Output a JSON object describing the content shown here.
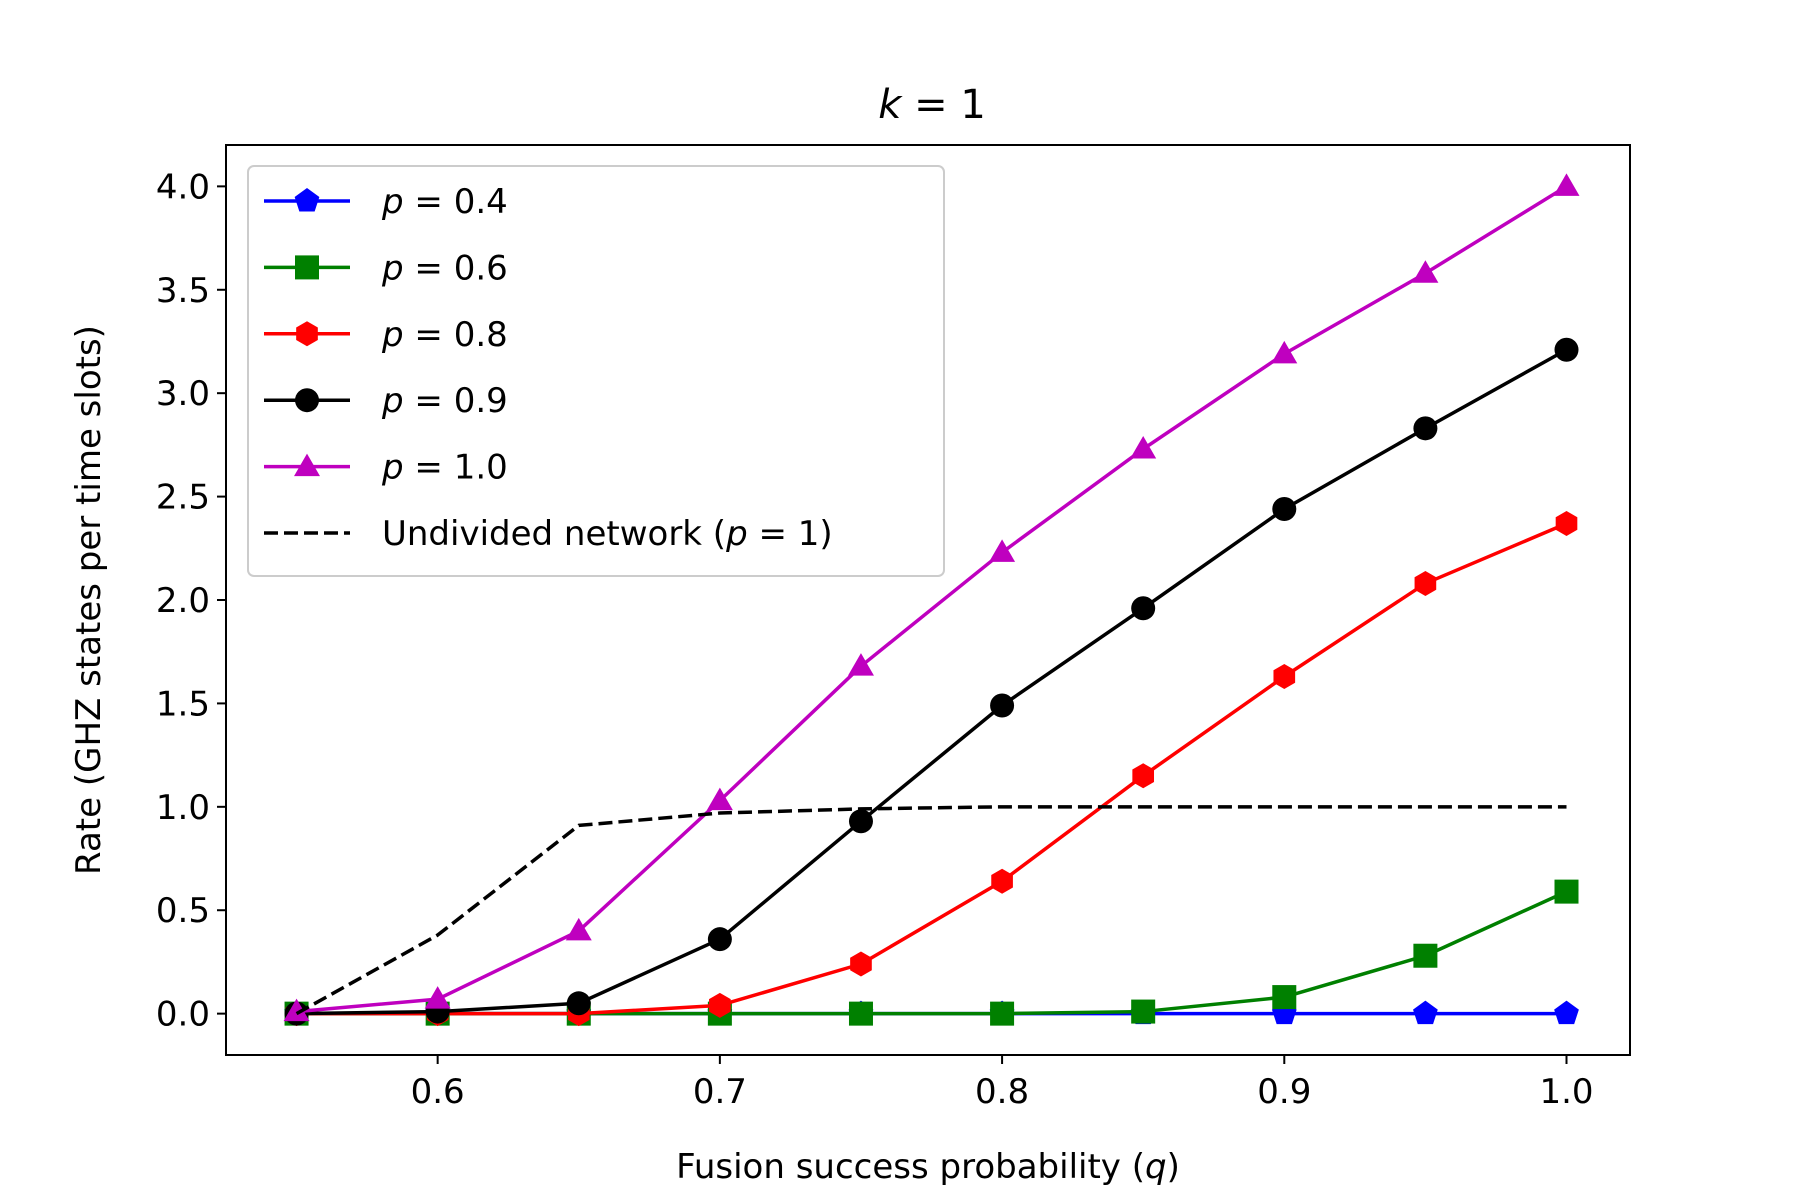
{
  "chart_data": {
    "type": "line",
    "title": "k = 1",
    "title_var": "k",
    "title_rest": " = 1",
    "xlabel": "Fusion success probability (q)",
    "xlabel_pre": "Fusion success probability (",
    "xlabel_var": "q",
    "xlabel_post": ")",
    "ylabel": "Rate (GHZ states per time slots)",
    "xlim": [
      0.525,
      1.0225
    ],
    "ylim": [
      -0.2,
      4.2
    ],
    "xticks": [
      0.6,
      0.7,
      0.8,
      0.9,
      1.0
    ],
    "xtick_labels": [
      "0.6",
      "0.7",
      "0.8",
      "0.9",
      "1.0"
    ],
    "yticks": [
      0.0,
      0.5,
      1.0,
      1.5,
      2.0,
      2.5,
      3.0,
      3.5,
      4.0
    ],
    "ytick_labels": [
      "0.0",
      "0.5",
      "1.0",
      "1.5",
      "2.0",
      "2.5",
      "3.0",
      "3.5",
      "4.0"
    ],
    "grid": false,
    "legend_position": "upper-left",
    "x": [
      0.55,
      0.6,
      0.65,
      0.7,
      0.75,
      0.8,
      0.85,
      0.9,
      0.95,
      1.0
    ],
    "series": [
      {
        "name": "p = 0.4",
        "name_var": "p",
        "name_rest": " = 0.4",
        "color": "#0000ff",
        "marker": "pentagon",
        "line": "solid",
        "values": [
          0,
          0,
          0,
          0,
          0,
          0,
          0,
          0,
          0,
          0
        ]
      },
      {
        "name": "p = 0.6",
        "name_var": "p",
        "name_rest": " = 0.6",
        "color": "#008000",
        "marker": "square",
        "line": "solid",
        "values": [
          0,
          0,
          0,
          0,
          0,
          0,
          0.01,
          0.08,
          0.28,
          0.59
        ]
      },
      {
        "name": "p = 0.8",
        "name_var": "p",
        "name_rest": " = 0.8",
        "color": "#ff0000",
        "marker": "hexagon",
        "line": "solid",
        "values": [
          0,
          0,
          0,
          0.04,
          0.24,
          0.64,
          1.15,
          1.63,
          2.08,
          2.37
        ]
      },
      {
        "name": "p = 0.9",
        "name_var": "p",
        "name_rest": " = 0.9",
        "color": "#000000",
        "marker": "circle",
        "line": "solid",
        "values": [
          0,
          0.01,
          0.05,
          0.36,
          0.93,
          1.49,
          1.96,
          2.44,
          2.83,
          3.21
        ]
      },
      {
        "name": "p = 1.0",
        "name_var": "p",
        "name_rest": " = 1.0",
        "color": "#bf00bf",
        "marker": "triangle",
        "line": "solid",
        "values": [
          0.01,
          0.07,
          0.4,
          1.03,
          1.68,
          2.23,
          2.73,
          3.19,
          3.58,
          4.0
        ]
      },
      {
        "name": "Undivided network (p = 1)",
        "name_pre": "Undivided network (",
        "name_var": "p",
        "name_post": " = 1)",
        "color": "#000000",
        "marker": "none",
        "line": "dashed",
        "values": [
          0,
          0.38,
          0.91,
          0.97,
          0.99,
          1.0,
          1.0,
          1.0,
          1.0,
          1.0
        ]
      }
    ]
  }
}
